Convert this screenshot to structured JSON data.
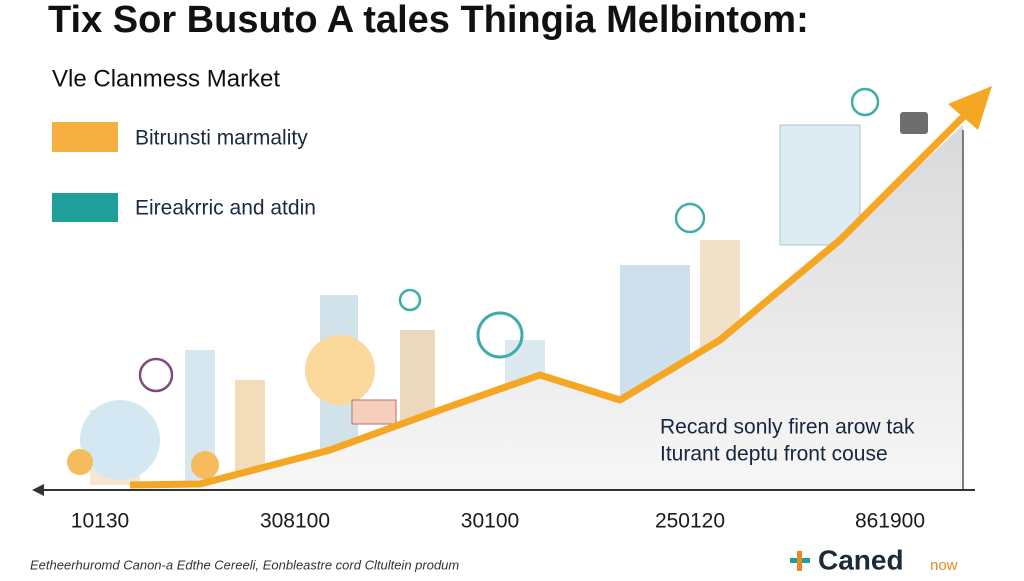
{
  "header": {
    "title": "Tix Sor Busuto A tales Thingia Melbintom:",
    "subtitle": "Vle Clanmess Market"
  },
  "legend": [
    {
      "label": "Bitrunsti marmality"
    },
    {
      "label": "Eireakrric and atdin"
    }
  ],
  "annotation": [
    "Recard sonly firen arow tak",
    "Iturant deptu front couse"
  ],
  "axis_labels": [
    "10130",
    "308100",
    "30100",
    "250120",
    "861900"
  ],
  "footer": "Eetheerhuromd Canon-a Edthe Cereeli, Eonbleastre cord Cltultein produm",
  "logo": {
    "name": "Caned",
    "suffix": "now"
  }
}
